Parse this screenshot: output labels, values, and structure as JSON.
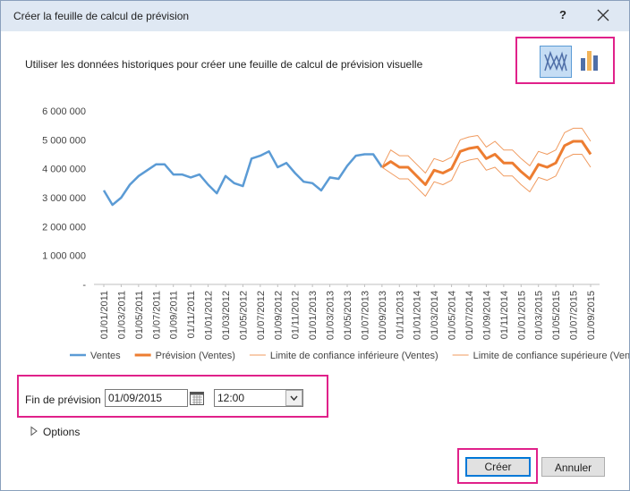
{
  "dialog": {
    "title": "Créer la feuille de calcul de prévision",
    "help": "?",
    "description": "Utiliser les données historiques pour créer une feuille de calcul de prévision visuelle",
    "end_label": "Fin de prévision",
    "end_date": "01/09/2015",
    "end_time": "12:00",
    "options": "Options",
    "create": "Créer",
    "cancel": "Annuler"
  },
  "chart_data": {
    "type": "line",
    "categories": [
      "01/01/2011",
      null,
      "01/03/2011",
      null,
      "01/05/2011",
      null,
      "01/07/2011",
      null,
      "01/09/2011",
      null,
      "01/11/2011",
      null,
      "01/01/2012",
      null,
      "01/03/2012",
      null,
      "01/05/2012",
      null,
      "01/07/2012",
      null,
      "01/09/2012",
      null,
      "01/11/2012",
      null,
      "01/01/2013",
      null,
      "01/03/2013",
      null,
      "01/05/2013",
      null,
      "01/07/2013",
      null,
      "01/09/2013",
      null,
      "01/11/2013",
      null,
      "01/01/2014",
      null,
      "01/03/2014",
      null,
      "01/05/2014",
      null,
      "01/07/2014",
      null,
      "01/09/2014",
      null,
      "01/11/2014",
      null,
      "01/01/2015",
      null,
      "01/03/2015",
      null,
      "01/05/2015",
      null,
      "01/07/2015",
      null,
      "01/09/2015"
    ],
    "series": [
      {
        "name": "Ventes",
        "color": "#5b9bd5",
        "width": 2.5,
        "values": [
          3250000,
          2750000,
          3000000,
          3450000,
          3750000,
          3950000,
          4150000,
          4150000,
          3800000,
          3800000,
          3700000,
          3800000,
          3450000,
          3150000,
          3750000,
          3500000,
          3400000,
          4350000,
          4450000,
          4600000,
          4050000,
          4200000,
          3850000,
          3550000,
          3500000,
          3250000,
          3700000,
          3650000,
          4100000,
          4450000,
          4500000,
          4500000,
          4050000,
          null,
          null,
          null,
          null,
          null,
          null,
          null,
          null,
          null,
          null,
          null,
          null,
          null,
          null,
          null,
          null,
          null,
          null,
          null,
          null,
          null,
          null,
          null,
          null
        ]
      },
      {
        "name": "Prévision (Ventes)",
        "color": "#ed7d31",
        "width": 3,
        "values": [
          null,
          null,
          null,
          null,
          null,
          null,
          null,
          null,
          null,
          null,
          null,
          null,
          null,
          null,
          null,
          null,
          null,
          null,
          null,
          null,
          null,
          null,
          null,
          null,
          null,
          null,
          null,
          null,
          null,
          null,
          null,
          null,
          4050000,
          4250000,
          4050000,
          4050000,
          3750000,
          3450000,
          3950000,
          3850000,
          4000000,
          4600000,
          4700000,
          4750000,
          4350000,
          4500000,
          4200000,
          4200000,
          3900000,
          3650000,
          4150000,
          4050000,
          4200000,
          4800000,
          4950000,
          4950000,
          4500000
        ]
      },
      {
        "name": "Limite de confiance inférieure (Ventes)",
        "color": "#f09a5e",
        "width": 1,
        "values": [
          null,
          null,
          null,
          null,
          null,
          null,
          null,
          null,
          null,
          null,
          null,
          null,
          null,
          null,
          null,
          null,
          null,
          null,
          null,
          null,
          null,
          null,
          null,
          null,
          null,
          null,
          null,
          null,
          null,
          null,
          null,
          null,
          4050000,
          3850000,
          3650000,
          3650000,
          3350000,
          3050000,
          3550000,
          3450000,
          3600000,
          4200000,
          4300000,
          4350000,
          3950000,
          4050000,
          3750000,
          3750000,
          3450000,
          3200000,
          3700000,
          3600000,
          3750000,
          4350000,
          4500000,
          4500000,
          4050000
        ]
      },
      {
        "name": "Limite de confiance supérieure (Ventes)",
        "color": "#f09a5e",
        "width": 1,
        "values": [
          null,
          null,
          null,
          null,
          null,
          null,
          null,
          null,
          null,
          null,
          null,
          null,
          null,
          null,
          null,
          null,
          null,
          null,
          null,
          null,
          null,
          null,
          null,
          null,
          null,
          null,
          null,
          null,
          null,
          null,
          null,
          null,
          4050000,
          4650000,
          4450000,
          4450000,
          4150000,
          3850000,
          4350000,
          4250000,
          4400000,
          5000000,
          5100000,
          5150000,
          4750000,
          4950000,
          4650000,
          4650000,
          4350000,
          4100000,
          4600000,
          4500000,
          4650000,
          5250000,
          5400000,
          5400000,
          4950000
        ]
      }
    ],
    "ylim": [
      0,
      6000000
    ],
    "yticks": [
      {
        "value": 0,
        "label": "-"
      },
      {
        "value": 1000000,
        "label": "1 000 000"
      },
      {
        "value": 2000000,
        "label": "2 000 000"
      },
      {
        "value": 3000000,
        "label": "3 000 000"
      },
      {
        "value": 4000000,
        "label": "4 000 000"
      },
      {
        "value": 5000000,
        "label": "5 000 000"
      },
      {
        "value": 6000000,
        "label": "6 000 000"
      }
    ],
    "legend": "bottom"
  }
}
